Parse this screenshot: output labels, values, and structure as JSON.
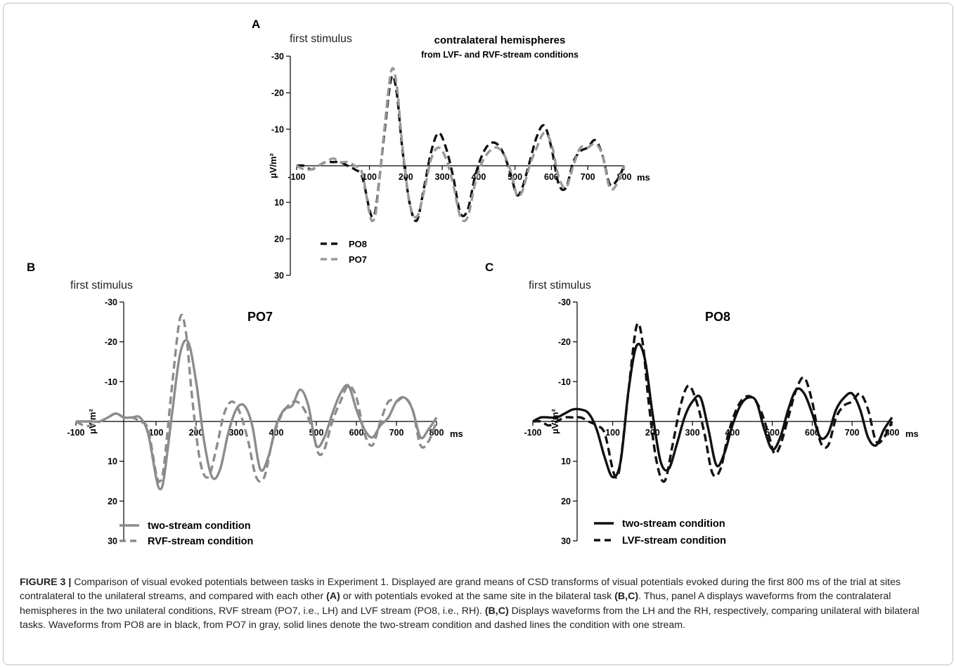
{
  "figure_label": "FIGURE 3 |",
  "caption_segments": [
    {
      "text": "Comparison of visual evoked potentials between tasks in Experiment 1. Displayed are grand means of CSD transforms of visual potentials evoked during the first 800 ms of the trial at sites contralateral to the unilateral streams, and compared with each other ",
      "bold": false
    },
    {
      "text": "(A)",
      "bold": true
    },
    {
      "text": " or with potentials evoked at the same site in the bilateral task ",
      "bold": false
    },
    {
      "text": "(B,C)",
      "bold": true
    },
    {
      "text": ". Thus, panel A displays waveforms from the contralateral hemispheres in the two unilateral conditions, RVF stream (PO7, i.e., LH) and LVF stream (PO8, i.e., RH). ",
      "bold": false
    },
    {
      "text": "(B,C)",
      "bold": true
    },
    {
      "text": " Displays waveforms from the LH and the RH, respectively, comparing unilateral with bilateral tasks. Waveforms from PO8 are in black, from PO7 in gray, solid lines denote the two-stream condition and dashed lines the condition with one stream.",
      "bold": false
    }
  ],
  "chart_data": [
    {
      "panel": "A",
      "type": "line",
      "corner_label": "first stimulus",
      "title": "contralateral hemispheres",
      "subtitle": "from LVF- and RVF-stream conditions",
      "ylabel": "µV/m²",
      "x_unit": "ms",
      "xlim": [
        -100,
        800
      ],
      "ylim": [
        -30,
        30
      ],
      "y_inverted": true,
      "x_ticks": [
        "-100",
        "100",
        "200",
        "300",
        "400",
        "500",
        "600",
        "700",
        "800"
      ],
      "y_ticks": [
        "-30",
        "-20",
        "-10",
        "10",
        "20",
        "30"
      ],
      "legend_position": "bottom-left",
      "series": [
        {
          "name": "PO8",
          "color": "#111111",
          "dashed": true,
          "x": [
            -100,
            -80,
            -60,
            -40,
            -20,
            0,
            20,
            40,
            60,
            80,
            100,
            110,
            120,
            140,
            160,
            175,
            190,
            210,
            230,
            250,
            270,
            290,
            310,
            330,
            350,
            370,
            390,
            410,
            430,
            450,
            470,
            490,
            505,
            520,
            540,
            560,
            580,
            600,
            620,
            640,
            660,
            680,
            700,
            720,
            740,
            760,
            780,
            800
          ],
          "y": [
            0,
            0,
            1,
            0,
            -1,
            -1,
            -1,
            0,
            1,
            3,
            12,
            14,
            10,
            -8,
            -24,
            -20,
            -5,
            10,
            15,
            6,
            -4,
            -9,
            -5,
            3,
            13,
            12,
            3,
            -3,
            -6,
            -6,
            -3,
            3,
            8,
            6,
            -1,
            -8,
            -11,
            -5,
            5,
            6,
            -1,
            -4,
            -5,
            -7,
            -3,
            5,
            4,
            0
          ]
        },
        {
          "name": "PO7",
          "color": "#999999",
          "dashed": true,
          "x": [
            -100,
            -80,
            -60,
            -40,
            -20,
            0,
            20,
            40,
            60,
            80,
            100,
            110,
            120,
            140,
            160,
            175,
            190,
            210,
            230,
            250,
            270,
            290,
            310,
            330,
            350,
            370,
            390,
            410,
            430,
            450,
            470,
            490,
            505,
            520,
            540,
            560,
            580,
            600,
            620,
            640,
            660,
            680,
            700,
            720,
            740,
            760,
            780,
            800
          ],
          "y": [
            0,
            1,
            1,
            0,
            -1,
            -2,
            -1,
            -1,
            0,
            2,
            13,
            15,
            11,
            -9,
            -26,
            -22,
            -6,
            10,
            14,
            7,
            -2,
            -5,
            -2,
            5,
            14,
            14,
            5,
            -1,
            -4,
            -5,
            -3,
            2,
            8,
            7,
            0,
            -5,
            -9,
            -6,
            3,
            6,
            0,
            -5,
            -5,
            -6,
            -3,
            6,
            5,
            0
          ]
        }
      ]
    },
    {
      "panel": "B",
      "type": "line",
      "corner_label": "first stimulus",
      "title": "PO7",
      "ylabel": "µV/m²",
      "x_unit": "ms",
      "xlim": [
        -100,
        800
      ],
      "ylim": [
        -30,
        30
      ],
      "y_inverted": true,
      "x_ticks": [
        "-100",
        "100",
        "200",
        "300",
        "400",
        "500",
        "600",
        "700",
        "800"
      ],
      "y_ticks": [
        "-30",
        "-20",
        "-10",
        "10",
        "20",
        "30"
      ],
      "legend_position": "bottom-left",
      "series": [
        {
          "name": "two-stream condition",
          "color": "#8c8c8c",
          "dashed": false,
          "x": [
            -100,
            -80,
            -60,
            -40,
            -20,
            0,
            20,
            40,
            60,
            80,
            100,
            110,
            120,
            140,
            160,
            180,
            200,
            220,
            240,
            260,
            280,
            300,
            320,
            340,
            360,
            380,
            400,
            420,
            440,
            460,
            480,
            500,
            520,
            540,
            560,
            580,
            600,
            620,
            640,
            660,
            680,
            700,
            720,
            740,
            760,
            780,
            800
          ],
          "y": [
            0,
            0,
            0,
            0,
            -1,
            -2,
            -1,
            -1,
            -1,
            3,
            14,
            17,
            14,
            -2,
            -17,
            -20,
            -10,
            5,
            14,
            12,
            3,
            -3,
            -4,
            1,
            12,
            9,
            1,
            -3,
            -4,
            -8,
            -4,
            6,
            4,
            -2,
            -7,
            -9,
            -3,
            2,
            4,
            1,
            -1,
            -5,
            -6,
            -3,
            4,
            2,
            -1
          ]
        },
        {
          "name": "RVF-stream condition",
          "color": "#8c8c8c",
          "dashed": true,
          "x": [
            -100,
            -80,
            -60,
            -40,
            -20,
            0,
            20,
            40,
            60,
            80,
            100,
            110,
            120,
            140,
            160,
            175,
            190,
            210,
            230,
            250,
            270,
            290,
            310,
            330,
            350,
            370,
            390,
            410,
            430,
            450,
            470,
            490,
            505,
            520,
            540,
            560,
            580,
            600,
            620,
            640,
            660,
            680,
            700,
            720,
            740,
            760,
            780,
            800
          ],
          "y": [
            0,
            1,
            1,
            0,
            -1,
            -2,
            -1,
            -1,
            0,
            2,
            13,
            15,
            11,
            -9,
            -26,
            -22,
            -6,
            10,
            14,
            7,
            -2,
            -5,
            -2,
            5,
            14,
            14,
            5,
            -1,
            -4,
            -5,
            -3,
            2,
            8,
            7,
            0,
            -5,
            -9,
            -6,
            3,
            6,
            0,
            -5,
            -5,
            -6,
            -3,
            6,
            5,
            0
          ]
        }
      ]
    },
    {
      "panel": "C",
      "type": "line",
      "corner_label": "first stimulus",
      "title": "PO8",
      "ylabel": "µV/m²",
      "x_unit": "ms",
      "xlim": [
        -100,
        800
      ],
      "ylim": [
        -30,
        30
      ],
      "y_inverted": true,
      "x_ticks": [
        "-100",
        "100",
        "200",
        "300",
        "400",
        "500",
        "600",
        "700",
        "800"
      ],
      "y_ticks": [
        "-30",
        "-20",
        "-10",
        "10",
        "20",
        "30"
      ],
      "legend_position": "bottom-left",
      "series": [
        {
          "name": "two-stream condition",
          "color": "#111111",
          "dashed": false,
          "x": [
            -100,
            -80,
            -60,
            -40,
            -20,
            0,
            20,
            40,
            60,
            80,
            100,
            120,
            140,
            160,
            180,
            200,
            220,
            240,
            260,
            280,
            300,
            320,
            340,
            360,
            380,
            400,
            420,
            440,
            460,
            480,
            500,
            520,
            540,
            560,
            580,
            600,
            620,
            640,
            660,
            680,
            700,
            720,
            740,
            760,
            780,
            800
          ],
          "y": [
            0,
            -1,
            -1,
            -1,
            -2,
            -3,
            -3,
            -2,
            2,
            9,
            14,
            10,
            -8,
            -19,
            -16,
            -2,
            10,
            12,
            6,
            -1,
            -5,
            -6,
            2,
            11,
            8,
            1,
            -4,
            -6,
            -5,
            2,
            7,
            4,
            -3,
            -8,
            -7,
            -2,
            4,
            3,
            -3,
            -6,
            -7,
            -3,
            4,
            6,
            2,
            -1
          ]
        },
        {
          "name": "LVF-stream condition",
          "color": "#111111",
          "dashed": true,
          "x": [
            -100,
            -80,
            -60,
            -40,
            -20,
            0,
            20,
            40,
            60,
            80,
            100,
            110,
            120,
            140,
            160,
            175,
            190,
            210,
            230,
            250,
            270,
            290,
            310,
            330,
            350,
            370,
            390,
            410,
            430,
            450,
            470,
            490,
            505,
            520,
            540,
            560,
            580,
            600,
            620,
            640,
            660,
            680,
            700,
            720,
            740,
            760,
            780,
            800
          ],
          "y": [
            0,
            0,
            1,
            0,
            -1,
            -1,
            -1,
            0,
            1,
            3,
            12,
            14,
            10,
            -8,
            -24,
            -20,
            -5,
            10,
            15,
            6,
            -4,
            -9,
            -5,
            3,
            13,
            12,
            3,
            -3,
            -6,
            -6,
            -3,
            3,
            8,
            6,
            -1,
            -8,
            -11,
            -5,
            5,
            6,
            -1,
            -4,
            -5,
            -7,
            -3,
            5,
            4,
            0
          ]
        }
      ]
    }
  ]
}
